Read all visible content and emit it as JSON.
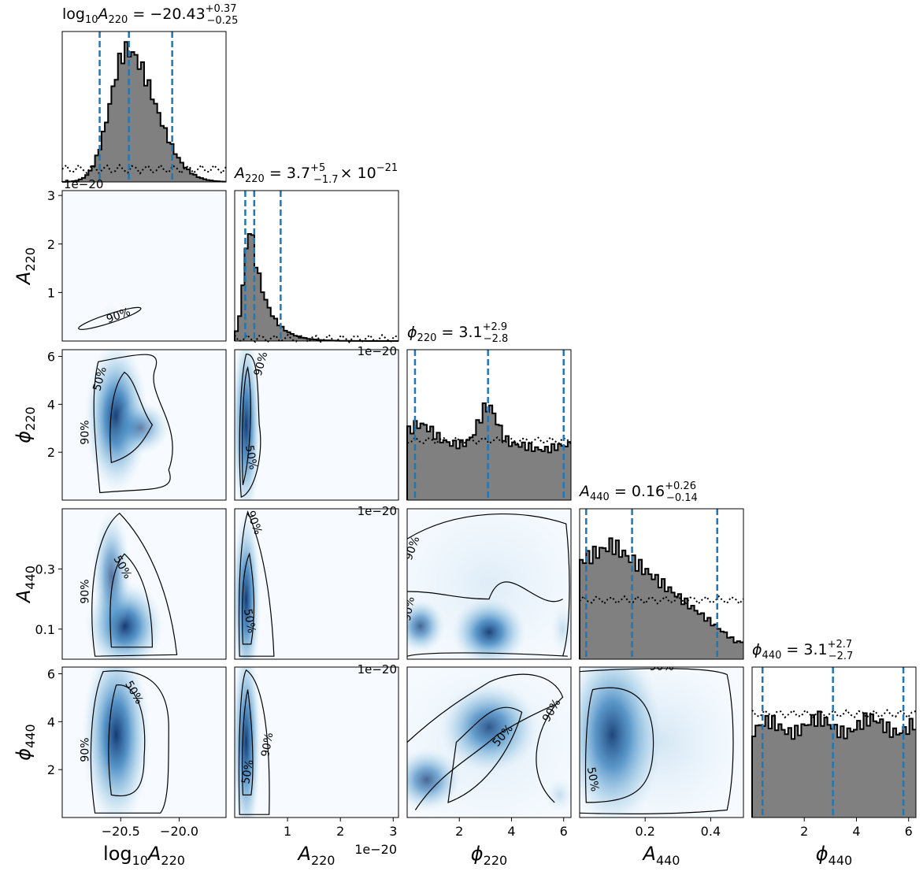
{
  "chart_data": {
    "type": "corner",
    "parameters": [
      {
        "key": "log10A220",
        "label_base": "log",
        "label_sub1": "10",
        "label_main": "A",
        "label_sub2": "220",
        "xlim": [
          -21.0,
          -19.6
        ],
        "ticks": [
          -20.5,
          -20.0
        ],
        "tick_labels": [
          "−20.5",
          "−20.0"
        ],
        "offset_text": "1e−20",
        "title": {
          "value": "= −20.43",
          "plus": "+0.37",
          "minus": "−0.25"
        },
        "quantiles": [
          -20.68,
          -20.43,
          -20.06
        ]
      },
      {
        "key": "A220",
        "label_main": "A",
        "label_sub2": "220",
        "xlim": [
          0.0,
          3.1
        ],
        "ticks": [
          1,
          2,
          3
        ],
        "tick_labels": [
          "1",
          "2",
          "3"
        ],
        "offset_text": "1e−20",
        "title": {
          "value": "= 3.7",
          "plus": "+5",
          "minus": "−1.7",
          "suffix": "× 10",
          "suffix_exp": "−21"
        },
        "quantiles": [
          0.2,
          0.37,
          0.87
        ]
      },
      {
        "key": "phi220",
        "label_main": "ϕ",
        "label_sub2": "220",
        "xlim": [
          0.0,
          6.28
        ],
        "ticks": [
          2,
          4,
          6
        ],
        "tick_labels": [
          "2",
          "4",
          "6"
        ],
        "title": {
          "value": "= 3.1",
          "plus": "+2.9",
          "minus": "−2.8"
        },
        "quantiles": [
          0.3,
          3.1,
          6.0
        ]
      },
      {
        "key": "A440",
        "label_main": "A",
        "label_sub2": "440",
        "xlim": [
          0.0,
          0.5
        ],
        "ticks": [
          0.1,
          0.3
        ],
        "tick_labels": [
          "0.1",
          "0.3"
        ],
        "xticks": [
          0.2,
          0.4
        ],
        "xtick_labels": [
          "0.2",
          "0.4"
        ],
        "title": {
          "value": "= 0.16",
          "plus": "+0.26",
          "minus": "−0.14"
        },
        "quantiles": [
          0.02,
          0.16,
          0.42
        ]
      },
      {
        "key": "phi440",
        "label_main": "ϕ",
        "label_sub2": "440",
        "xlim": [
          0.0,
          6.28
        ],
        "ticks": [
          2,
          4,
          6
        ],
        "tick_labels": [
          "2",
          "4",
          "6"
        ],
        "title": {
          "value": "= 3.1",
          "plus": "+2.7",
          "minus": "−2.7"
        },
        "quantiles": [
          0.4,
          3.1,
          5.8
        ]
      }
    ],
    "contour_labels": [
      "50%",
      "90%"
    ],
    "colors": {
      "hist_fill": "#808080",
      "hist_edge": "#000000",
      "quantile_line": "#1f77b4",
      "density_low": "#f7fbff",
      "density_high": "#08306b",
      "contour": "#000000"
    }
  }
}
